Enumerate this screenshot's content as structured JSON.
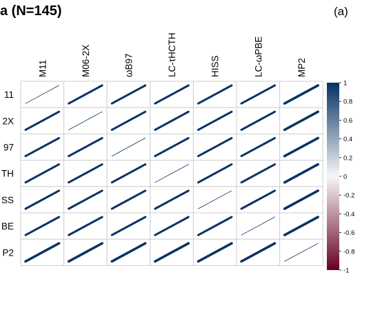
{
  "title": "a (N=145)",
  "panel_label": "(a)",
  "chart_data": {
    "type": "heatmap",
    "style": "ellipse correlation matrix",
    "columns": [
      "M11",
      "M06-2X",
      "ωB97",
      "LC-τHCTH",
      "HISS",
      "LC-ωPBE",
      "MP2"
    ],
    "rows": [
      "11",
      "2X",
      "97",
      "TH",
      "SS",
      "BE",
      "P2"
    ],
    "values": [
      [
        1.0,
        0.99,
        0.99,
        0.99,
        0.99,
        0.99,
        0.985
      ],
      [
        0.99,
        1.0,
        0.99,
        0.99,
        0.99,
        0.99,
        0.985
      ],
      [
        0.99,
        0.99,
        1.0,
        0.99,
        0.99,
        0.99,
        0.985
      ],
      [
        0.99,
        0.99,
        0.99,
        1.0,
        0.99,
        0.99,
        0.985
      ],
      [
        0.99,
        0.99,
        0.99,
        0.99,
        1.0,
        0.99,
        0.985
      ],
      [
        0.99,
        0.99,
        0.99,
        0.99,
        0.99,
        1.0,
        0.985
      ],
      [
        0.985,
        0.985,
        0.985,
        0.985,
        0.985,
        0.985,
        1.0
      ]
    ],
    "colorbar": {
      "range": [
        -1,
        1
      ],
      "ticks": [
        "1",
        "0.8",
        "0.6",
        "0.4",
        "0.2",
        "0",
        "-0.2",
        "-0.4",
        "-0.6",
        "-0.8",
        "-1"
      ],
      "color_positive": "#053061",
      "color_mid": "#f7f7f7",
      "color_negative": "#67001f"
    },
    "grid": true
  }
}
